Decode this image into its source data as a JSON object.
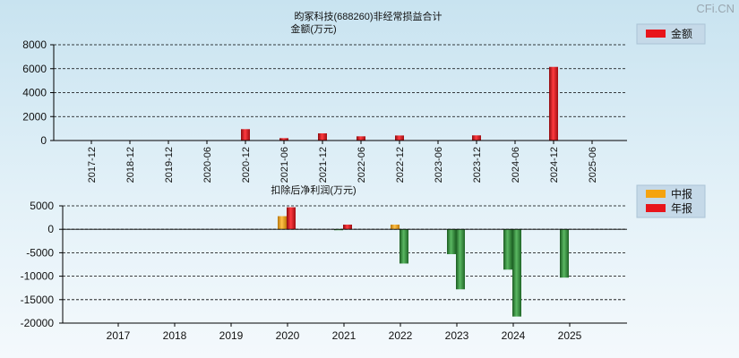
{
  "brand": "CFi.CN",
  "colors": {
    "red": "#e8141a",
    "orange": "#f5a30f",
    "green": "#2f8a37",
    "grid": "#000000"
  },
  "chart_data": [
    {
      "type": "bar",
      "title": "昀冢科技(688260)非经常损益合计",
      "subtitle": "金额(万元)",
      "legend": [
        {
          "label": "金额",
          "color": "red"
        }
      ],
      "legend_position": "top-right",
      "categories": [
        "2017-12",
        "2018-12",
        "2019-12",
        "2020-06",
        "2020-12",
        "2021-06",
        "2021-12",
        "2022-06",
        "2022-12",
        "2023-06",
        "2023-12",
        "2024-06",
        "2024-12",
        "2025-06"
      ],
      "values": [
        0,
        0,
        0,
        0,
        950,
        200,
        600,
        350,
        420,
        0,
        430,
        0,
        6150,
        0
      ],
      "yticks": [
        0,
        2000,
        4000,
        6000,
        8000
      ],
      "ylim": [
        0,
        8000
      ],
      "grid": true
    },
    {
      "type": "bar",
      "title": "扣除后净利润(万元)",
      "legend": [
        {
          "label": "中报",
          "color": "orange"
        },
        {
          "label": "年报",
          "color": "red"
        }
      ],
      "legend_position": "top-right",
      "categories": [
        "2017",
        "2018",
        "2019",
        "2020",
        "2021",
        "2022",
        "2023",
        "2024",
        "2025"
      ],
      "series": [
        {
          "name": "中报",
          "values": [
            null,
            null,
            null,
            2800,
            -200,
            1000,
            -5300,
            -8600,
            -10300
          ]
        },
        {
          "name": "年报",
          "values": [
            null,
            null,
            null,
            4700,
            1000,
            -7300,
            -12800,
            -18600,
            null
          ]
        }
      ],
      "yticks": [
        -20000,
        -15000,
        -10000,
        -5000,
        0,
        5000
      ],
      "ylim": [
        -20000,
        5000
      ],
      "grid": true
    }
  ]
}
